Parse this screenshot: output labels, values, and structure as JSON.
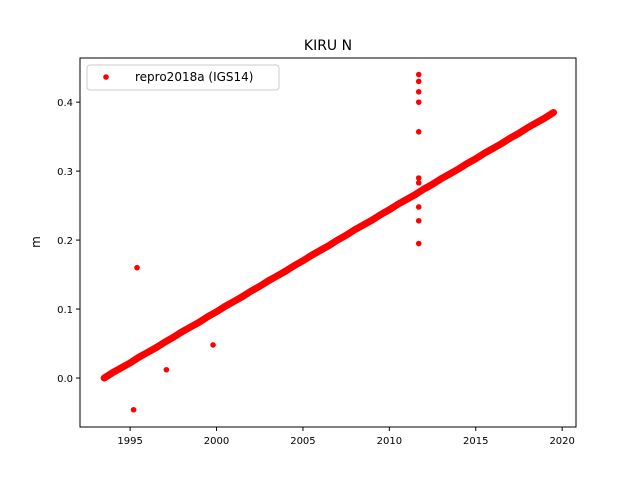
{
  "chart_data": {
    "type": "scatter",
    "title": "KIRU N",
    "xlabel": "",
    "ylabel": "m",
    "xlim": [
      1992.1,
      2020.8
    ],
    "ylim": [
      -0.071,
      0.464
    ],
    "xticks": [
      1995,
      2000,
      2005,
      2010,
      2015,
      2020
    ],
    "xtick_labels": [
      "1995",
      "2000",
      "2005",
      "2010",
      "2015",
      "2020"
    ],
    "yticks": [
      0.0,
      0.1,
      0.2,
      0.3,
      0.4
    ],
    "ytick_labels": [
      "0.0",
      "0.1",
      "0.2",
      "0.3",
      "0.4"
    ],
    "grid": false,
    "legend": {
      "position": "top-left",
      "entries": [
        "repro2018a (IGS14)"
      ]
    },
    "color": "#ff0000",
    "series": [
      {
        "name": "repro2018a (IGS14)",
        "x": [
          1993.5,
          1994,
          1994.5,
          1995,
          1995.5,
          1996,
          1996.5,
          1997,
          1997.5,
          1998,
          1998.5,
          1999,
          1999.5,
          2000,
          2000.5,
          2001,
          2001.5,
          2002,
          2002.5,
          2003,
          2003.5,
          2004,
          2004.5,
          2005,
          2005.5,
          2006,
          2006.5,
          2007,
          2007.5,
          2008,
          2008.5,
          2009,
          2009.5,
          2010,
          2010.5,
          2011,
          2011.5,
          2012,
          2012.5,
          2013,
          2013.5,
          2014,
          2014.5,
          2015,
          2015.5,
          2016,
          2016.5,
          2017,
          2017.5,
          2018,
          2018.5,
          2019,
          2019.5
        ],
        "y": [
          0.0,
          0.008,
          0.015,
          0.022,
          0.03,
          0.037,
          0.044,
          0.052,
          0.059,
          0.067,
          0.074,
          0.081,
          0.089,
          0.096,
          0.104,
          0.111,
          0.118,
          0.126,
          0.133,
          0.141,
          0.148,
          0.155,
          0.163,
          0.17,
          0.178,
          0.185,
          0.192,
          0.2,
          0.207,
          0.215,
          0.222,
          0.229,
          0.237,
          0.244,
          0.252,
          0.259,
          0.266,
          0.274,
          0.281,
          0.289,
          0.296,
          0.303,
          0.311,
          0.318,
          0.326,
          0.333,
          0.34,
          0.348,
          0.355,
          0.363,
          0.37,
          0.377,
          0.385
        ],
        "outliers_x": [
          1995.4,
          1995.2,
          1999.8,
          1997.1,
          2011.7,
          2011.7,
          2011.7,
          2011.7,
          2011.7,
          2011.7,
          2011.7,
          2011.7,
          2011.7,
          2011.7
        ],
        "outliers_y": [
          0.16,
          -0.046,
          0.048,
          0.012,
          0.44,
          0.43,
          0.415,
          0.4,
          0.357,
          0.29,
          0.283,
          0.248,
          0.228,
          0.195
        ]
      }
    ]
  }
}
